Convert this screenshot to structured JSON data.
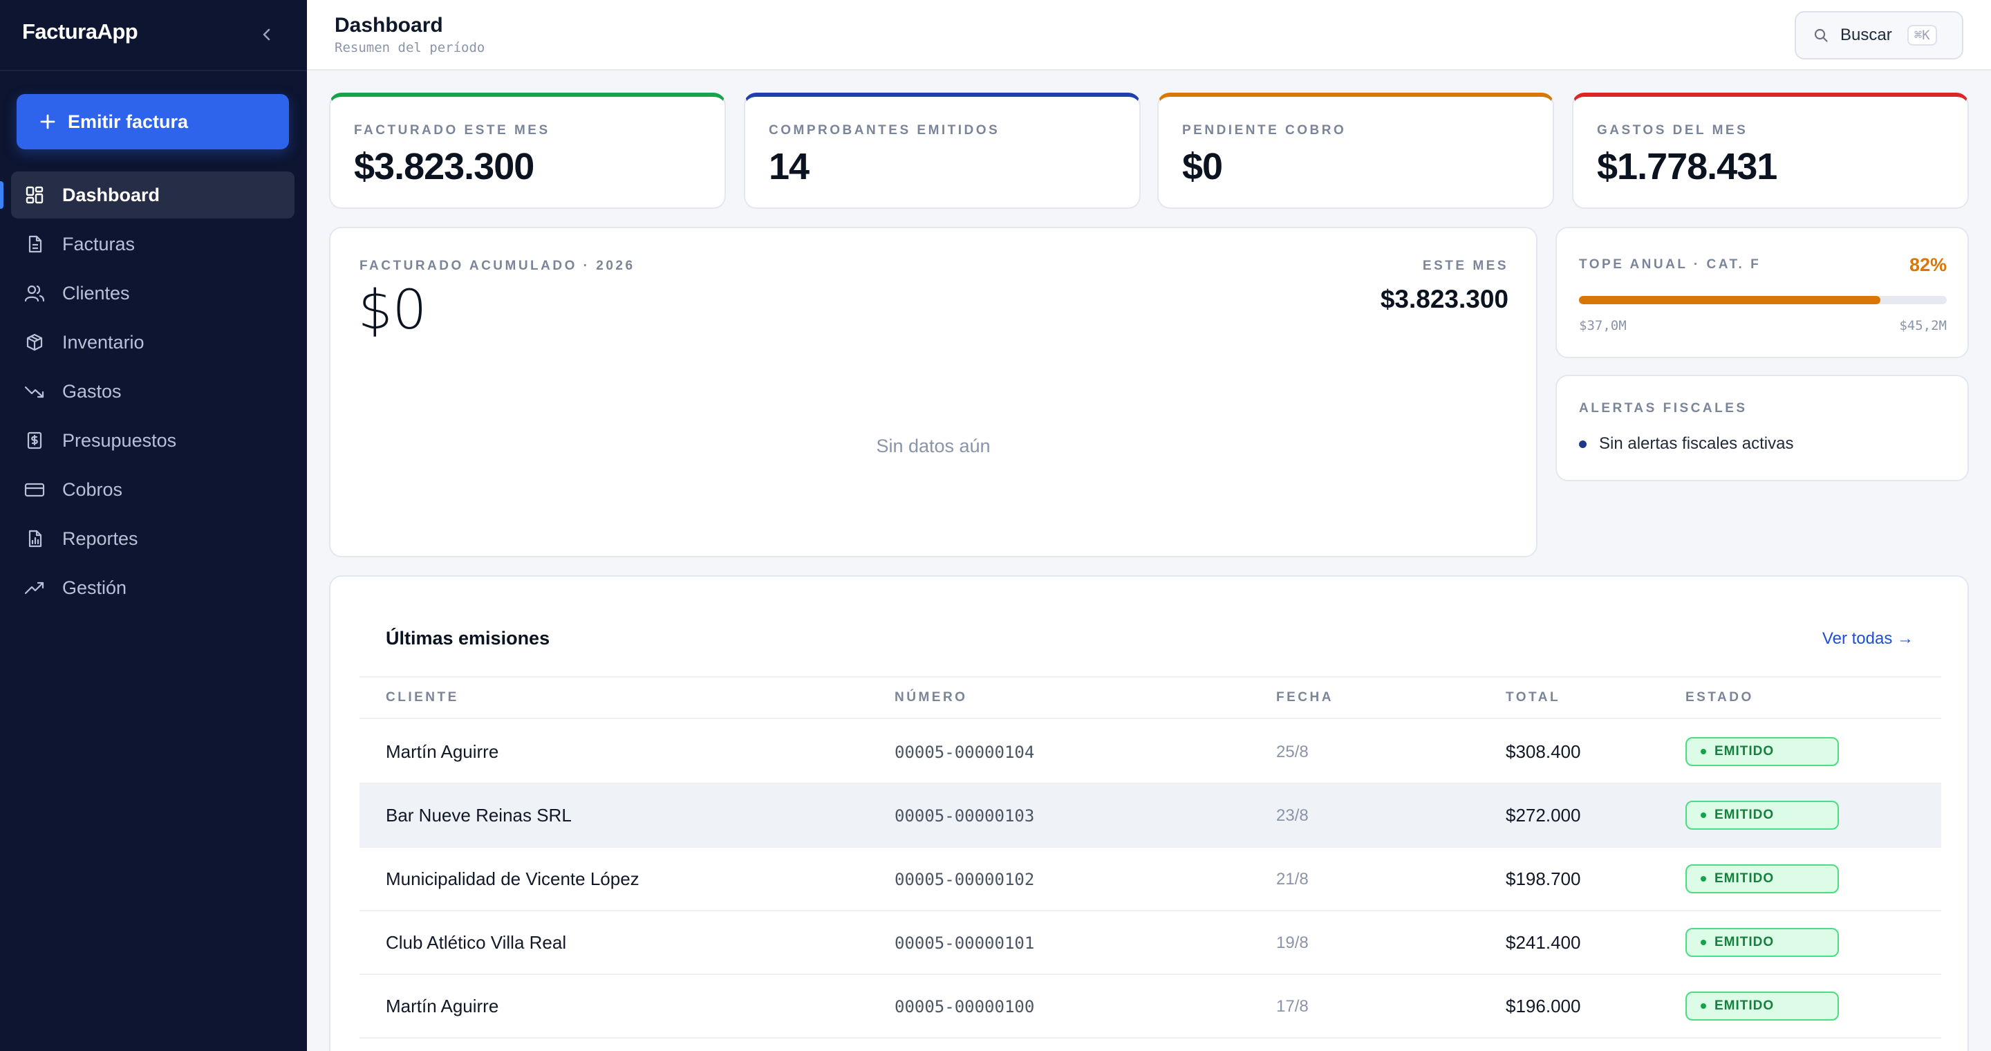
{
  "app": {
    "name": "FacturaApp"
  },
  "sidebar": {
    "emit_button": "Emitir factura",
    "items": [
      {
        "label": "Dashboard",
        "icon": "grid-icon",
        "active": true
      },
      {
        "label": "Facturas",
        "icon": "document-icon"
      },
      {
        "label": "Clientes",
        "icon": "users-icon"
      },
      {
        "label": "Inventario",
        "icon": "box-icon"
      },
      {
        "label": "Gastos",
        "icon": "trend-down-icon"
      },
      {
        "label": "Presupuestos",
        "icon": "dollar-doc-icon"
      },
      {
        "label": "Cobros",
        "icon": "credit-card-icon"
      },
      {
        "label": "Reportes",
        "icon": "report-icon"
      },
      {
        "label": "Gestión",
        "icon": "trend-up-icon"
      }
    ]
  },
  "header": {
    "title": "Dashboard",
    "subtitle": "Resumen del período",
    "search_label": "Buscar",
    "search_shortcut": "⌘K"
  },
  "stats": [
    {
      "label": "FACTURADO ESTE MES",
      "value": "$3.823.300",
      "color": "#16a34a"
    },
    {
      "label": "COMPROBANTES EMITIDOS",
      "value": "14",
      "color": "#1e40af"
    },
    {
      "label": "PENDIENTE COBRO",
      "value": "$0",
      "color": "#d97706"
    },
    {
      "label": "GASTOS DEL MES",
      "value": "$1.778.431",
      "color": "#dc2626"
    }
  ],
  "chart": {
    "label": "FACTURADO ACUMULADO · 2026",
    "total": "$0",
    "month_label": "ESTE MES",
    "month_value": "$3.823.300",
    "empty": "Sin datos aún"
  },
  "tope": {
    "label": "TOPE ANUAL · CAT. F",
    "percent_text": "82%",
    "progress": 0.82,
    "min": "$37,0M",
    "max": "$45,2M",
    "color": "#d97706"
  },
  "alerts": {
    "label": "ALERTAS FISCALES",
    "items": [
      "Sin alertas fiscales activas"
    ]
  },
  "table": {
    "title": "Últimas emisiones",
    "view_all": "Ver todas →",
    "columns": [
      "CLIENTE",
      "NÚMERO",
      "FECHA",
      "TOTAL",
      "ESTADO"
    ],
    "rows": [
      {
        "cliente": "Martín Aguirre",
        "numero": "00005-00000104",
        "fecha": "25/8",
        "total": "$308.400",
        "estado": "EMITIDO"
      },
      {
        "cliente": "Bar Nueve Reinas SRL",
        "numero": "00005-00000103",
        "fecha": "23/8",
        "total": "$272.000",
        "estado": "EMITIDO"
      },
      {
        "cliente": "Municipalidad de Vicente López",
        "numero": "00005-00000102",
        "fecha": "21/8",
        "total": "$198.700",
        "estado": "EMITIDO"
      },
      {
        "cliente": "Club Atlético Villa Real",
        "numero": "00005-00000101",
        "fecha": "19/8",
        "total": "$241.400",
        "estado": "EMITIDO"
      },
      {
        "cliente": "Martín Aguirre",
        "numero": "00005-00000100",
        "fecha": "17/8",
        "total": "$196.000",
        "estado": "EMITIDO"
      }
    ]
  }
}
